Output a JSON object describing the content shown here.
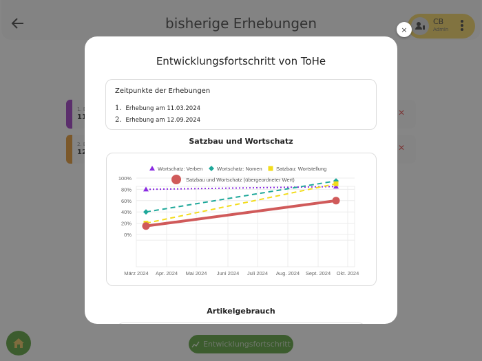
{
  "header": {
    "title": "bisherige Erhebungen",
    "back_icon": "arrow-left-icon",
    "user": {
      "initials": "CB",
      "role": "Admin",
      "avatar_icon": "user-admin-icon",
      "menu_icon": "more-vertical-icon"
    }
  },
  "erhebungen_list": [
    {
      "label": "1. E",
      "date": "11.",
      "stripe_color": "#8b1ab3",
      "delete_icon": "close-x-icon"
    },
    {
      "label": "2. E",
      "date": "12",
      "stripe_color": "#d9820f",
      "delete_icon": "close-x-icon"
    }
  ],
  "footer": {
    "home_icon": "home-icon",
    "progress_button_label": "Entwicklungsfortschritt",
    "progress_icon": "chart-trend-icon"
  },
  "modal": {
    "title": "Entwicklungsfortschritt von ToHe",
    "close_label": "×",
    "dates": {
      "heading": "Zeitpunkte der Erhebungen",
      "items": [
        {
          "num": "1.",
          "text": "Erhebung am 11.03.2024"
        },
        {
          "num": "2.",
          "text": "Erhebung am 12.09.2024"
        }
      ]
    },
    "section1_title": "Satzbau und Wortschatz",
    "section2_title": "Artikelgebrauch"
  },
  "chart_data": {
    "type": "line",
    "title": "Satzbau und Wortschatz",
    "xlabel": "",
    "ylabel": "",
    "x_ticks": [
      "März 2024",
      "Apr. 2024",
      "Mai 2024",
      "Juni 2024",
      "Juli 2024",
      "Aug. 2024",
      "Sept. 2024",
      "Okt. 2024"
    ],
    "y_ticks": [
      "100%",
      "80%",
      "60%",
      "40%",
      "20%",
      "0%"
    ],
    "ylim": [
      -20,
      110
    ],
    "grid": true,
    "legend_position": "top",
    "x": [
      "11.03.2024",
      "12.09.2024"
    ],
    "series": [
      {
        "name": "Wortschatz: Verben",
        "marker": "triangle",
        "style": "dotted",
        "color": "#8a2be2",
        "values": [
          80,
          85
        ]
      },
      {
        "name": "Wortschatz: Nomen",
        "marker": "diamond",
        "style": "dashed",
        "color": "#1fa89a",
        "values": [
          40,
          95
        ]
      },
      {
        "name": "Satzbau: Wortstellung",
        "marker": "square",
        "style": "dashed",
        "color": "#f2dc1c",
        "values": [
          20,
          90
        ]
      },
      {
        "name": "Satzbau und Wortschatz (übergeordneter Wert)",
        "marker": "circle",
        "style": "solid",
        "color": "#d05a5a",
        "values": [
          15,
          60
        ]
      }
    ]
  }
}
